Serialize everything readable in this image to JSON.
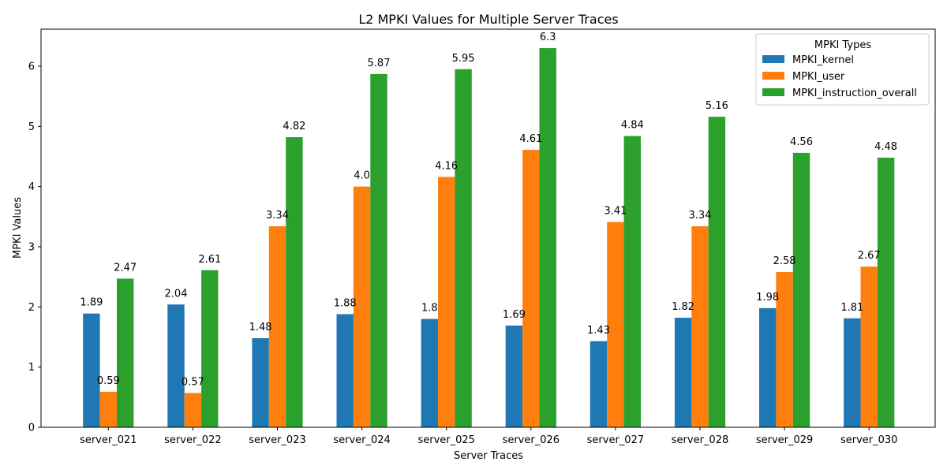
{
  "chart_data": {
    "type": "bar",
    "title": "L2 MPKI Values for Multiple Server Traces",
    "xlabel": "Server Traces",
    "ylabel": "MPKI Values",
    "ylim": [
      0,
      6.615
    ],
    "yticks": [
      0,
      1,
      2,
      3,
      4,
      5,
      6
    ],
    "grid": false,
    "legend": {
      "title": "MPKI Types",
      "placement": "top-right"
    },
    "categories": [
      "server_021",
      "server_022",
      "server_023",
      "server_024",
      "server_025",
      "server_026",
      "server_027",
      "server_028",
      "server_029",
      "server_030"
    ],
    "series": [
      {
        "name": "MPKI_kernel",
        "color": "#1f77b4",
        "values": [
          1.89,
          2.04,
          1.48,
          1.88,
          1.8,
          1.69,
          1.43,
          1.82,
          1.98,
          1.81
        ],
        "labels": [
          "1.89",
          "2.04",
          "1.48",
          "1.88",
          "1.8",
          "1.69",
          "1.43",
          "1.82",
          "1.98",
          "1.81"
        ]
      },
      {
        "name": "MPKI_user",
        "color": "#ff7f0e",
        "values": [
          0.59,
          0.57,
          3.34,
          4.0,
          4.16,
          4.61,
          3.41,
          3.34,
          2.58,
          2.67
        ],
        "labels": [
          "0.59",
          "0.57",
          "3.34",
          "4.0",
          "4.16",
          "4.61",
          "3.41",
          "3.34",
          "2.58",
          "2.67"
        ]
      },
      {
        "name": "MPKI_instruction_overall",
        "color": "#2ca02c",
        "values": [
          2.47,
          2.61,
          4.82,
          5.87,
          5.95,
          6.3,
          4.84,
          5.16,
          4.56,
          4.48
        ],
        "labels": [
          "2.47",
          "2.61",
          "4.82",
          "5.87",
          "5.95",
          "6.3",
          "4.84",
          "5.16",
          "4.56",
          "4.48"
        ]
      }
    ]
  }
}
